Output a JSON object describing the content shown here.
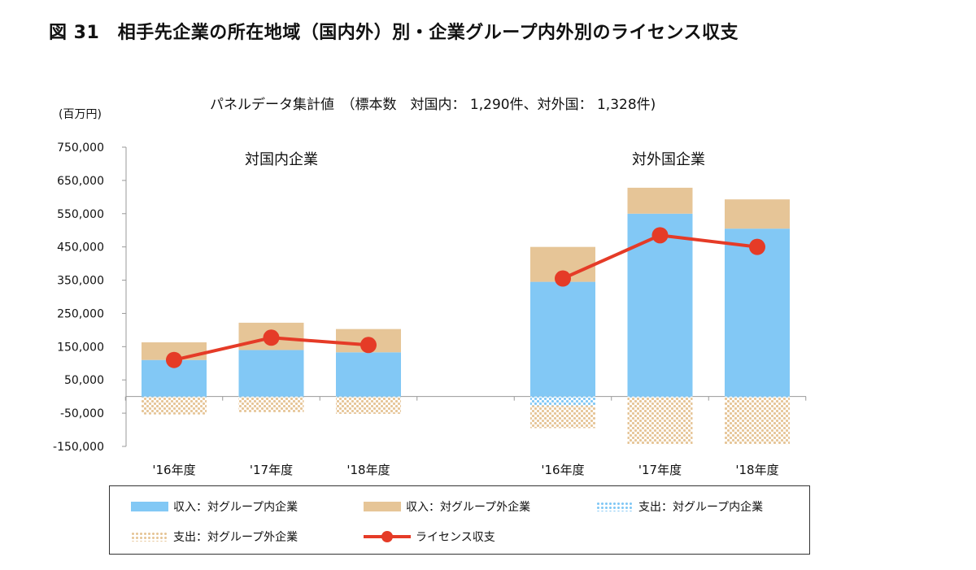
{
  "figure_title": "図 31　相手先企業の所在地域（国内外）別・企業グループ内外別のライセンス収支",
  "subtitle": "パネルデータ集計値　（標本数　対国内： 1,290件、対外国： 1,328件)",
  "unit_label": "(百万円)",
  "colors": {
    "income_intra": "#82c8f5",
    "income_extra": "#e6c597",
    "expense_intra": "#82c8f5",
    "expense_extra": "#e6c597",
    "balance": "#e53b27"
  },
  "chart_data": {
    "type": "bar",
    "stacked": true,
    "ylim": [
      -150000,
      750000
    ],
    "yticks": [
      -150000,
      -50000,
      50000,
      150000,
      250000,
      350000,
      450000,
      550000,
      650000,
      750000
    ],
    "ytick_labels": [
      "-150,000",
      "-50,000",
      "50,000",
      "150,000",
      "250,000",
      "350,000",
      "450,000",
      "550,000",
      "650,000",
      "750,000"
    ],
    "groups": [
      {
        "label": "対国内企業",
        "categories": [
          "'16年度",
          "'17年度",
          "'18年度"
        ]
      },
      {
        "label": "対外国企業",
        "categories": [
          "'16年度",
          "'17年度",
          "'18年度"
        ]
      }
    ],
    "series": [
      {
        "name": "収入：対グループ内企業",
        "kind": "bar",
        "pattern": "solid",
        "values": [
          110000,
          140000,
          133000,
          345000,
          550000,
          505000
        ]
      },
      {
        "name": "収入：対グループ外企業",
        "kind": "bar",
        "pattern": "solid",
        "values": [
          53000,
          82000,
          70000,
          105000,
          78000,
          88000
        ]
      },
      {
        "name": "支出：対グループ内企業",
        "kind": "bar",
        "pattern": "dotted",
        "values": [
          -2000,
          -2000,
          -2000,
          -27000,
          -3000,
          -3000
        ]
      },
      {
        "name": "支出：対グループ外企業",
        "kind": "bar",
        "pattern": "dotted",
        "values": [
          -52000,
          -45000,
          -50000,
          -68000,
          -140000,
          -140000
        ]
      },
      {
        "name": "ライセンス収支",
        "kind": "line",
        "values": [
          110000,
          177000,
          155000,
          355000,
          485000,
          450000
        ]
      }
    ]
  },
  "legend": [
    {
      "label": "収入：対グループ内企業",
      "swatch": "solid-blue"
    },
    {
      "label": "収入：対グループ外企業",
      "swatch": "solid-tan"
    },
    {
      "label": "支出：対グループ内企業",
      "swatch": "dotted-blue"
    },
    {
      "label": "支出：対グループ外企業",
      "swatch": "dotted-tan"
    },
    {
      "label": "ライセンス収支",
      "swatch": "line-red"
    }
  ]
}
